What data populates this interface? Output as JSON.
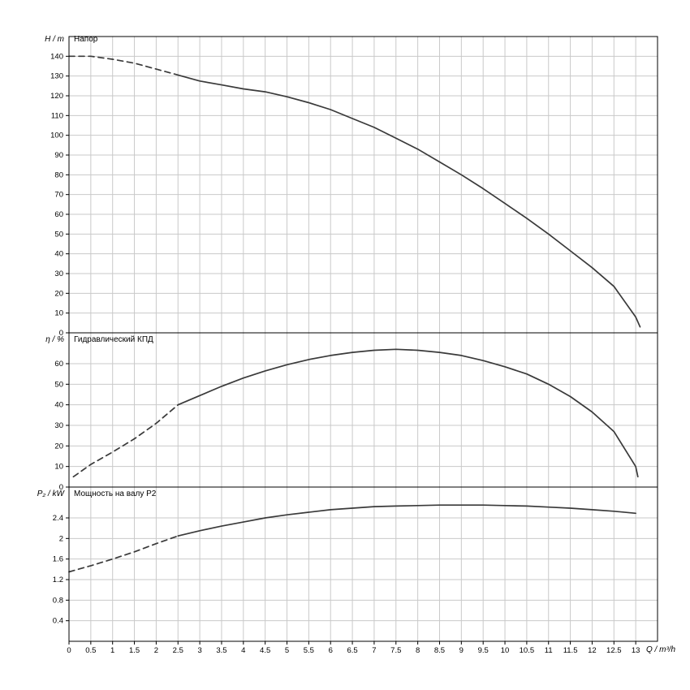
{
  "figure": {
    "bg": "#ffffff",
    "grid_color": "#c9c9c9",
    "axis_color": "#000000",
    "curve_color": "#3a3a3a",
    "xlabel": "Q / m³/h",
    "x": {
      "min": 0,
      "max": 13.5,
      "tick_step": 0.5,
      "label_max": 13
    }
  },
  "chart_data": [
    {
      "type": "line",
      "panel": "head",
      "ylabel": "H / m",
      "title": "Напор",
      "ylim": [
        0,
        150
      ],
      "yticks": [
        0,
        10,
        20,
        30,
        40,
        50,
        60,
        70,
        80,
        90,
        100,
        110,
        120,
        130,
        140
      ],
      "series": [
        {
          "name": "extrapolated",
          "style": "dashed",
          "points": [
            [
              0,
              140
            ],
            [
              0.5,
              140
            ],
            [
              1,
              138.5
            ],
            [
              1.5,
              136.5
            ],
            [
              2,
              133.5
            ],
            [
              2.5,
              130.5
            ]
          ]
        },
        {
          "name": "measured",
          "style": "solid",
          "points": [
            [
              2.5,
              130.5
            ],
            [
              3,
              127.5
            ],
            [
              3.5,
              125.5
            ],
            [
              4,
              123.5
            ],
            [
              4.5,
              122
            ],
            [
              5,
              119.5
            ],
            [
              5.5,
              116.5
            ],
            [
              6,
              113
            ],
            [
              6.5,
              108.5
            ],
            [
              7,
              104
            ],
            [
              7.5,
              98.5
            ],
            [
              8,
              93
            ],
            [
              8.5,
              86.5
            ],
            [
              9,
              80
            ],
            [
              9.5,
              73
            ],
            [
              10,
              65.5
            ],
            [
              10.5,
              58
            ],
            [
              11,
              50
            ],
            [
              11.5,
              41.5
            ],
            [
              12,
              33
            ],
            [
              12.5,
              23.5
            ],
            [
              13,
              8
            ],
            [
              13.1,
              3
            ]
          ]
        }
      ]
    },
    {
      "type": "line",
      "panel": "efficiency",
      "ylabel": "η / %",
      "title": "Гидравлический КПД",
      "ylim": [
        0,
        75
      ],
      "yticks": [
        0,
        10,
        20,
        30,
        40,
        50,
        60
      ],
      "series": [
        {
          "name": "extrapolated",
          "style": "dashed",
          "points": [
            [
              0.1,
              5
            ],
            [
              0.5,
              11
            ],
            [
              1,
              17
            ],
            [
              1.5,
              23.5
            ],
            [
              2,
              31
            ],
            [
              2.5,
              40
            ]
          ]
        },
        {
          "name": "measured",
          "style": "solid",
          "points": [
            [
              2.5,
              40
            ],
            [
              3,
              44.5
            ],
            [
              3.5,
              49
            ],
            [
              4,
              53
            ],
            [
              4.5,
              56.5
            ],
            [
              5,
              59.5
            ],
            [
              5.5,
              62
            ],
            [
              6,
              64
            ],
            [
              6.5,
              65.5
            ],
            [
              7,
              66.5
            ],
            [
              7.5,
              67
            ],
            [
              8,
              66.5
            ],
            [
              8.5,
              65.5
            ],
            [
              9,
              64
            ],
            [
              9.5,
              61.5
            ],
            [
              10,
              58.5
            ],
            [
              10.5,
              55
            ],
            [
              11,
              50
            ],
            [
              11.5,
              44
            ],
            [
              12,
              36.5
            ],
            [
              12.5,
              27
            ],
            [
              13,
              10
            ],
            [
              13.05,
              5
            ]
          ]
        }
      ]
    },
    {
      "type": "line",
      "panel": "power",
      "ylabel": "P₂ / kW",
      "title": "Мощность на валу P2",
      "ylim": [
        0,
        3
      ],
      "yticks": [
        0.4,
        0.8,
        1.2,
        1.6,
        2,
        2.4
      ],
      "series": [
        {
          "name": "extrapolated",
          "style": "dashed",
          "points": [
            [
              0,
              1.35
            ],
            [
              0.5,
              1.47
            ],
            [
              1,
              1.6
            ],
            [
              1.5,
              1.74
            ],
            [
              2,
              1.9
            ],
            [
              2.5,
              2.05
            ]
          ]
        },
        {
          "name": "measured",
          "style": "solid",
          "points": [
            [
              2.5,
              2.05
            ],
            [
              3,
              2.15
            ],
            [
              3.5,
              2.24
            ],
            [
              4,
              2.32
            ],
            [
              4.5,
              2.4
            ],
            [
              5,
              2.46
            ],
            [
              5.5,
              2.51
            ],
            [
              6,
              2.56
            ],
            [
              6.5,
              2.59
            ],
            [
              7,
              2.62
            ],
            [
              7.5,
              2.63
            ],
            [
              8,
              2.64
            ],
            [
              8.5,
              2.65
            ],
            [
              9,
              2.65
            ],
            [
              9.5,
              2.65
            ],
            [
              10,
              2.64
            ],
            [
              10.5,
              2.63
            ],
            [
              11,
              2.61
            ],
            [
              11.5,
              2.59
            ],
            [
              12,
              2.56
            ],
            [
              12.5,
              2.53
            ],
            [
              13,
              2.49
            ]
          ]
        }
      ]
    }
  ]
}
